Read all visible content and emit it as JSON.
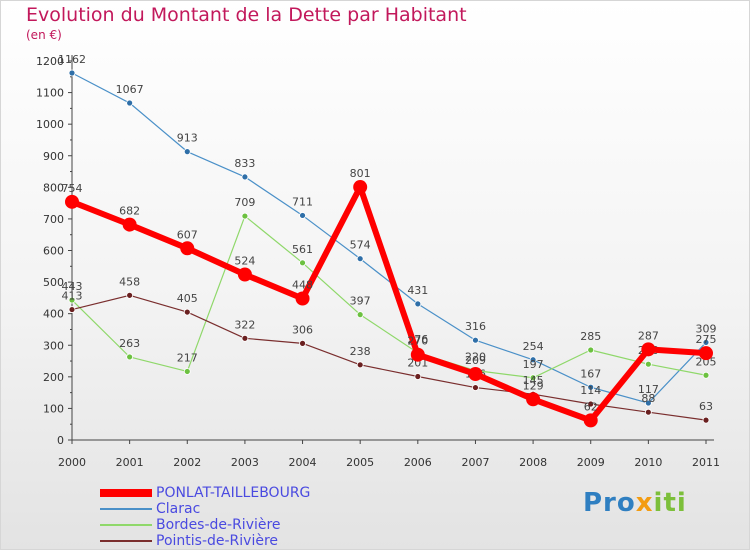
{
  "chart_data": {
    "type": "line",
    "title": "Evolution du Montant de la Dette par Habitant",
    "subtitle": "(en €)",
    "x": [
      "2000",
      "2001",
      "2002",
      "2003",
      "2004",
      "2005",
      "2006",
      "2007",
      "2008",
      "2009",
      "2010",
      "2011"
    ],
    "ylim": [
      0,
      1200
    ],
    "yticks": [
      0,
      100,
      200,
      300,
      400,
      500,
      600,
      700,
      800,
      900,
      1000,
      1100,
      1200
    ],
    "grid": false,
    "legend_position": "bottom-left",
    "series": [
      {
        "name": "Clarac",
        "color": "#4a90c8",
        "point_color": "#2f6fa8",
        "width": 1.2,
        "radius": 3,
        "values": [
          1162,
          1067,
          913,
          833,
          711,
          574,
          431,
          316,
          254,
          167,
          117,
          309
        ],
        "labels": [
          "1162",
          "1067",
          "913",
          "833",
          "711",
          "574",
          "431",
          "316",
          "254",
          "167",
          "117",
          "309"
        ]
      },
      {
        "name": "Bordes-de-Rivière",
        "color": "#8fd86a",
        "point_color": "#6cc140",
        "width": 1.2,
        "radius": 3,
        "values": [
          443,
          263,
          217,
          709,
          561,
          397,
          276,
          220,
          197,
          285,
          240,
          205
        ],
        "labels": [
          "443",
          "263",
          "217",
          "709",
          "561",
          "397",
          "276",
          "220",
          "197",
          "285",
          "240",
          "205"
        ]
      },
      {
        "name": "Pointis-de-Rivière",
        "color": "#7a2e2e",
        "point_color": "#6a2020",
        "width": 1.2,
        "radius": 3,
        "values": [
          413,
          458,
          405,
          322,
          306,
          238,
          201,
          166,
          145,
          114,
          88,
          63
        ],
        "labels": [
          "413",
          "458",
          "405",
          "322",
          "306",
          "238",
          "201",
          "166",
          "145",
          "114",
          "88",
          "63"
        ]
      },
      {
        "name": "PONLAT-TAILLEBOURG",
        "color": "#ff0000",
        "point_color": "#ff0000",
        "width": 6,
        "radius": 7,
        "values": [
          754,
          682,
          607,
          524,
          448,
          801,
          270,
          209,
          129,
          62,
          287,
          275
        ],
        "labels": [
          "754",
          "682",
          "607",
          "524",
          "448",
          "801",
          "270",
          "209",
          "129",
          "62",
          "287",
          "275"
        ]
      }
    ]
  },
  "legend": [
    {
      "label": "PONLAT-TAILLEBOURG",
      "color": "#ff0000",
      "thickness": 8
    },
    {
      "label": "Clarac",
      "color": "#4a90c8",
      "thickness": 2
    },
    {
      "label": "Bordes-de-Rivière",
      "color": "#8fd86a",
      "thickness": 2
    },
    {
      "label": "Pointis-de-Rivière",
      "color": "#7a2e2e",
      "thickness": 2
    }
  ],
  "logo": {
    "p": "Pro",
    "x": "x",
    "t": "iti"
  }
}
